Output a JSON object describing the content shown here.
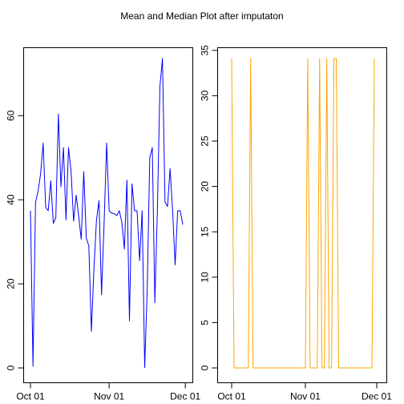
{
  "title": "Mean and Median Plot after imputaton",
  "chart_data": [
    {
      "type": "line",
      "name": "mean",
      "color": "#0000ff",
      "xlim": [
        "2012-10-01",
        "2012-11-30"
      ],
      "ylim": [
        0,
        73.6
      ],
      "xticks": [
        {
          "date": "2012-10-01",
          "label": "Oct 01"
        },
        {
          "date": "2012-11-01",
          "label": "Nov 01"
        },
        {
          "date": "2012-12-01",
          "label": "Dec 01"
        }
      ],
      "yticks": [
        0,
        20,
        40,
        60
      ],
      "grid": false,
      "series": [
        {
          "x": [
            "2012-10-01",
            "2012-10-02",
            "2012-10-03",
            "2012-10-04",
            "2012-10-05",
            "2012-10-06",
            "2012-10-07",
            "2012-10-08",
            "2012-10-09",
            "2012-10-10",
            "2012-10-11",
            "2012-10-12",
            "2012-10-13",
            "2012-10-14",
            "2012-10-15",
            "2012-10-16",
            "2012-10-17",
            "2012-10-18",
            "2012-10-19",
            "2012-10-20",
            "2012-10-21",
            "2012-10-22",
            "2012-10-23",
            "2012-10-24",
            "2012-10-25",
            "2012-10-26",
            "2012-10-27",
            "2012-10-28",
            "2012-10-29",
            "2012-10-30",
            "2012-10-31",
            "2012-11-01",
            "2012-11-02",
            "2012-11-03",
            "2012-11-04",
            "2012-11-05",
            "2012-11-06",
            "2012-11-07",
            "2012-11-08",
            "2012-11-09",
            "2012-11-10",
            "2012-11-11",
            "2012-11-12",
            "2012-11-13",
            "2012-11-14",
            "2012-11-15",
            "2012-11-16",
            "2012-11-17",
            "2012-11-18",
            "2012-11-19",
            "2012-11-20",
            "2012-11-21",
            "2012-11-22",
            "2012-11-23",
            "2012-11-24",
            "2012-11-25",
            "2012-11-26",
            "2012-11-27",
            "2012-11-28",
            "2012-11-29",
            "2012-11-30"
          ],
          "y": [
            37.4,
            0.4,
            39.4,
            42.1,
            46.2,
            53.5,
            38.2,
            37.4,
            44.5,
            34.4,
            35.8,
            60.4,
            43.1,
            52.4,
            35.2,
            52.4,
            46.7,
            34.9,
            41.1,
            36.1,
            30.6,
            46.7,
            30.9,
            29.0,
            8.7,
            23.5,
            35.1,
            39.8,
            17.4,
            34.1,
            53.5,
            37.4,
            36.8,
            36.7,
            36.2,
            37.4,
            34.7,
            28.3,
            44.7,
            11.2,
            43.8,
            37.4,
            37.4,
            25.5,
            37.4,
            0.1,
            18.7,
            50.0,
            52.4,
            15.5,
            37.4,
            67.0,
            73.6,
            39.5,
            38.4,
            47.4,
            37.4,
            24.5,
            37.4,
            37.4,
            34.1
          ]
        }
      ]
    },
    {
      "type": "line",
      "name": "median",
      "color": "#ffa500",
      "xlim": [
        "2012-10-01",
        "2012-11-30"
      ],
      "ylim": [
        0,
        34.1
      ],
      "xticks": [
        {
          "date": "2012-10-01",
          "label": "Oct 01"
        },
        {
          "date": "2012-11-01",
          "label": "Nov 01"
        },
        {
          "date": "2012-12-01",
          "label": "Dec 01"
        }
      ],
      "yticks": [
        0,
        5,
        10,
        15,
        20,
        25,
        30,
        35
      ],
      "grid": false,
      "series": [
        {
          "x": [
            "2012-10-01",
            "2012-10-02",
            "2012-10-03",
            "2012-10-04",
            "2012-10-05",
            "2012-10-06",
            "2012-10-07",
            "2012-10-08",
            "2012-10-09",
            "2012-10-10",
            "2012-10-11",
            "2012-10-12",
            "2012-10-13",
            "2012-10-14",
            "2012-10-15",
            "2012-10-16",
            "2012-10-17",
            "2012-10-18",
            "2012-10-19",
            "2012-10-20",
            "2012-10-21",
            "2012-10-22",
            "2012-10-23",
            "2012-10-24",
            "2012-10-25",
            "2012-10-26",
            "2012-10-27",
            "2012-10-28",
            "2012-10-29",
            "2012-10-30",
            "2012-10-31",
            "2012-11-01",
            "2012-11-02",
            "2012-11-03",
            "2012-11-04",
            "2012-11-05",
            "2012-11-06",
            "2012-11-07",
            "2012-11-08",
            "2012-11-09",
            "2012-11-10",
            "2012-11-11",
            "2012-11-12",
            "2012-11-13",
            "2012-11-14",
            "2012-11-15",
            "2012-11-16",
            "2012-11-17",
            "2012-11-18",
            "2012-11-19",
            "2012-11-20",
            "2012-11-21",
            "2012-11-22",
            "2012-11-23",
            "2012-11-24",
            "2012-11-25",
            "2012-11-26",
            "2012-11-27",
            "2012-11-28",
            "2012-11-29",
            "2012-11-30"
          ],
          "y": [
            34.1,
            0,
            0,
            0,
            0,
            0,
            0,
            0,
            34.1,
            0,
            0,
            0,
            0,
            0,
            0,
            0,
            0,
            0,
            0,
            0,
            0,
            0,
            0,
            0,
            0,
            0,
            0,
            0,
            0,
            0,
            0,
            0,
            34.1,
            0,
            0,
            0,
            0,
            34.1,
            0,
            0,
            34.1,
            0,
            0,
            34.1,
            34.1,
            0,
            0,
            0,
            0,
            0,
            0,
            0,
            0,
            0,
            0,
            0,
            0,
            0,
            0,
            0,
            34.1
          ]
        }
      ]
    }
  ]
}
